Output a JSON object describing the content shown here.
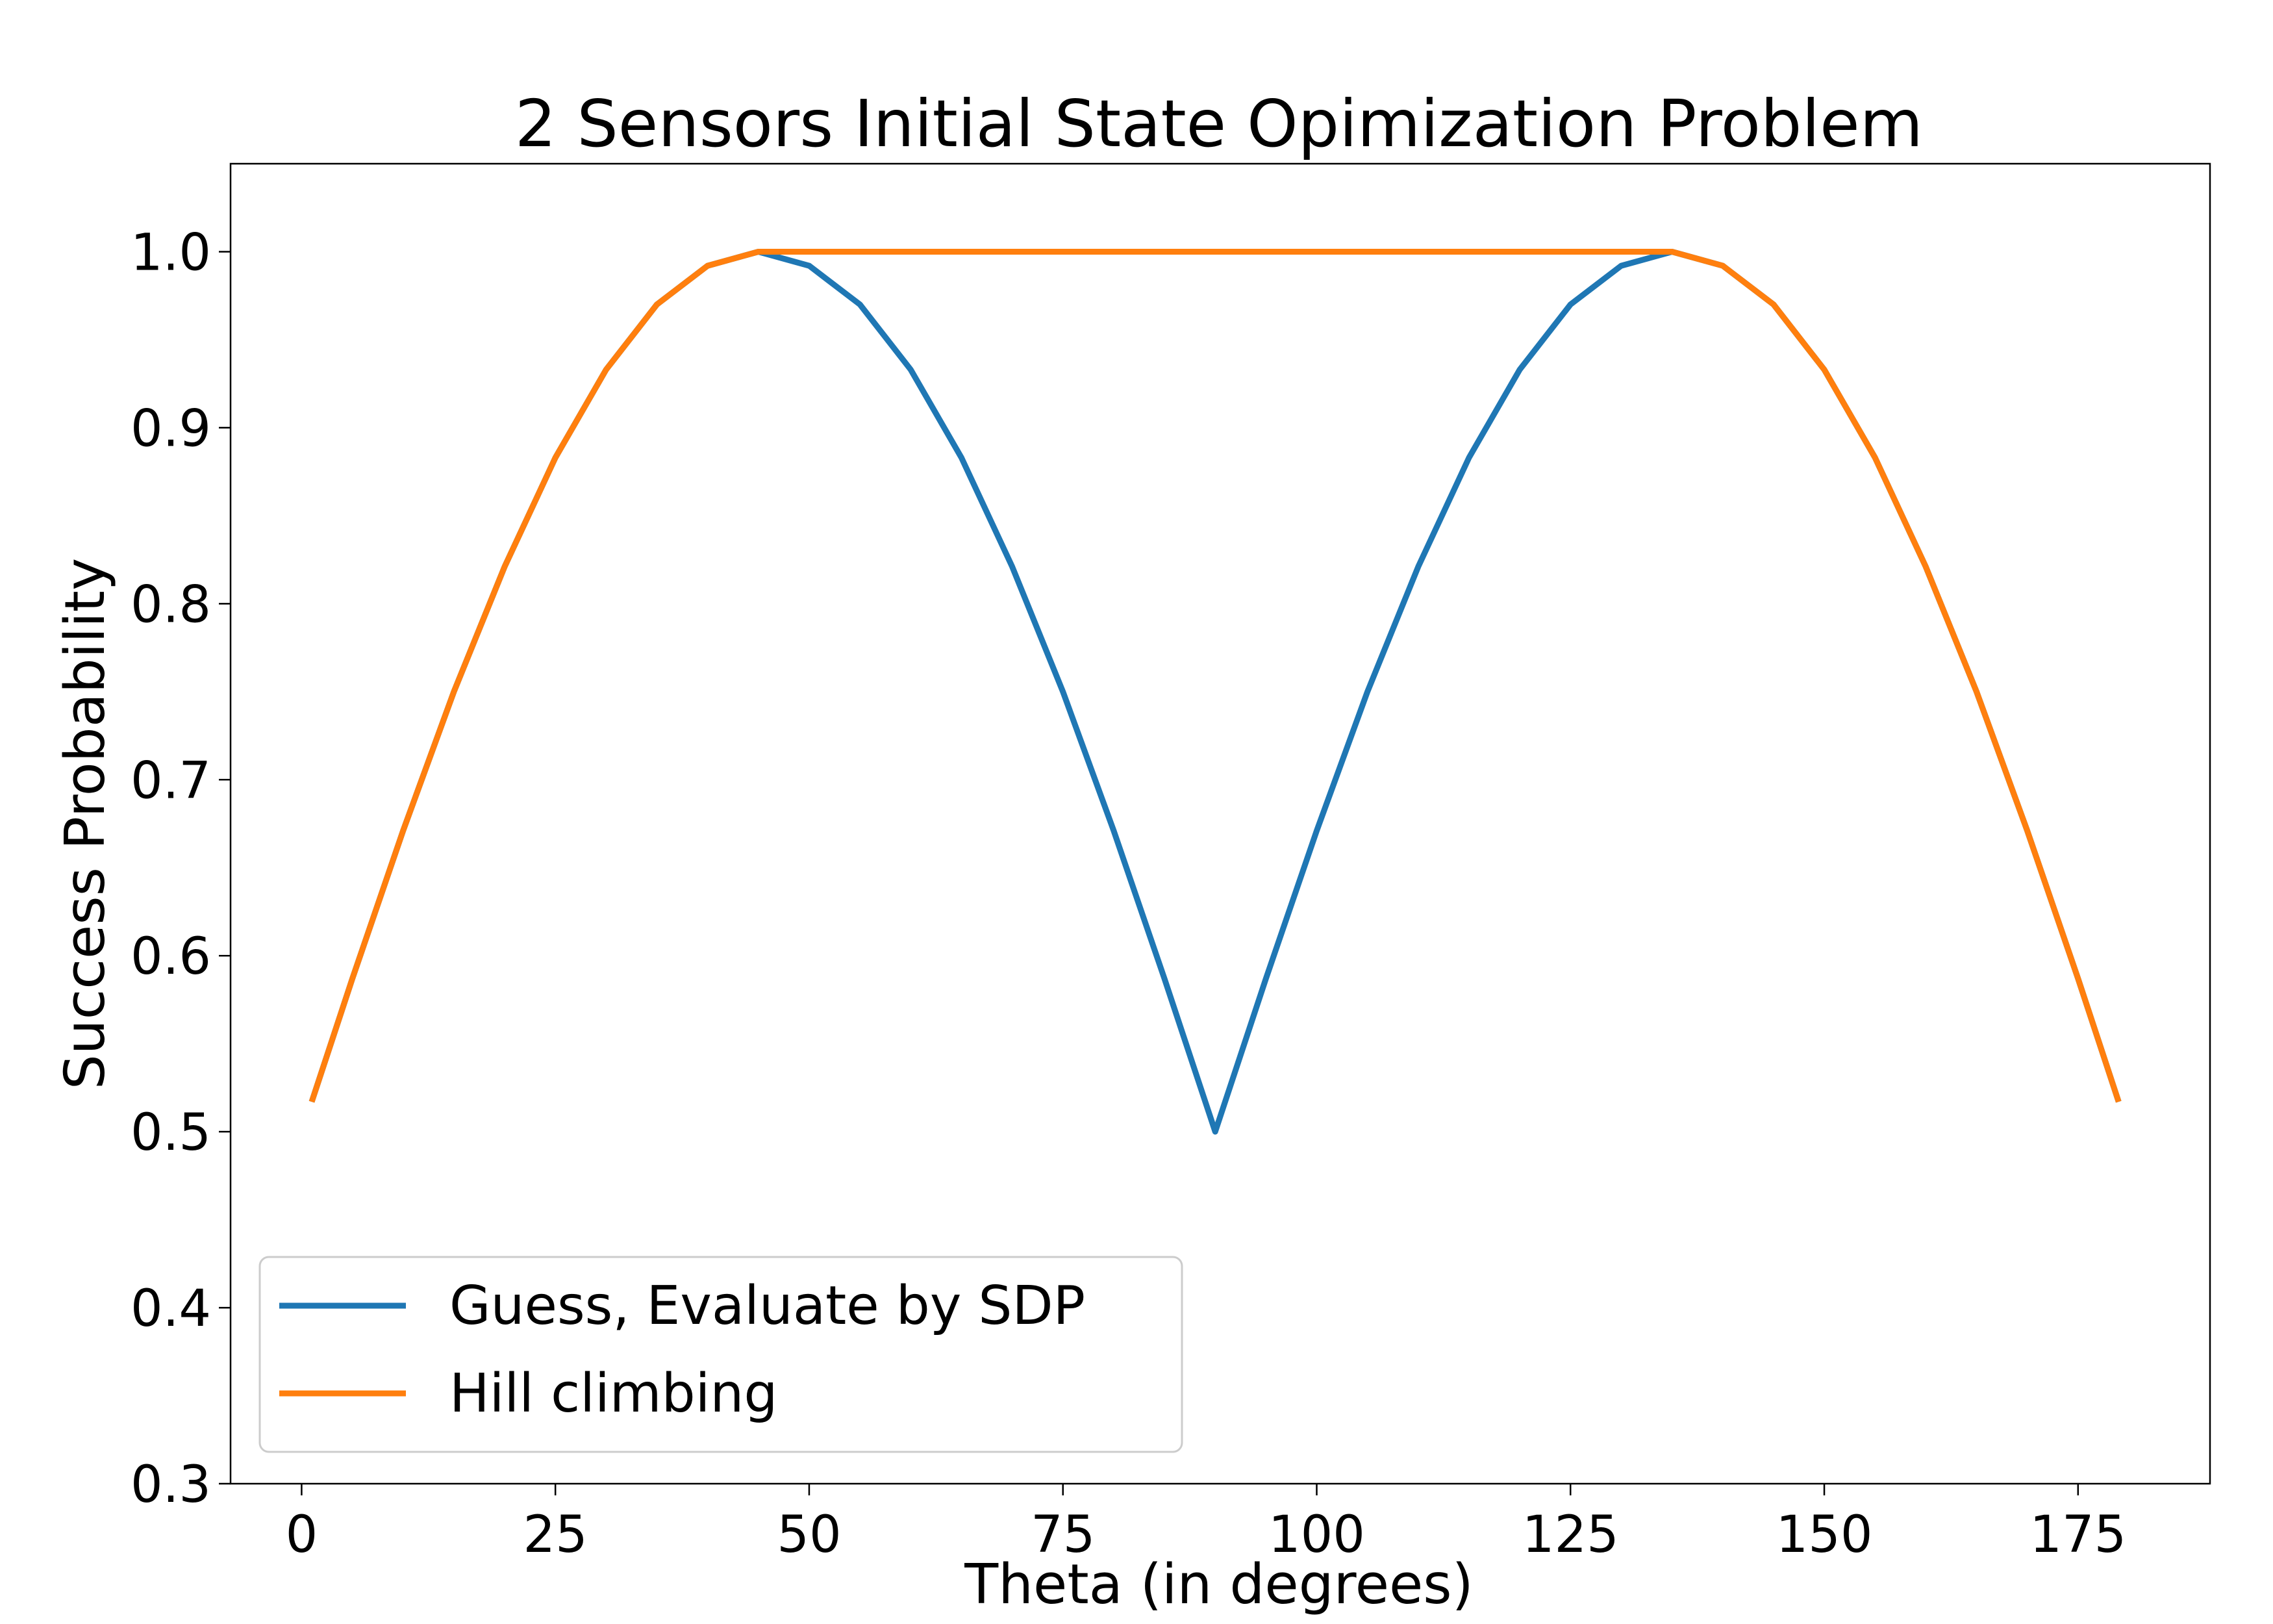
{
  "chart_data": {
    "type": "line",
    "title": "2 Sensors Initial State Opimization Problem",
    "xlabel": "Theta (in degrees)",
    "ylabel": "Success Probability",
    "xlim": [
      -7,
      188
    ],
    "ylim": [
      0.3,
      1.05
    ],
    "xticks": [
      0,
      25,
      50,
      75,
      100,
      125,
      150,
      175
    ],
    "yticks": [
      0.3,
      0.4,
      0.5,
      0.6,
      0.7,
      0.8,
      0.9,
      1.0
    ],
    "xtick_labels": [
      "0",
      "25",
      "50",
      "75",
      "100",
      "125",
      "150",
      "175"
    ],
    "ytick_labels": [
      "0.3",
      "0.4",
      "0.5",
      "0.6",
      "0.7",
      "0.8",
      "0.9",
      "1.0"
    ],
    "grid": false,
    "legend_position": "lower-left",
    "series": [
      {
        "name": "Guess, Evaluate by SDP",
        "color": "#1f77b4",
        "x": [
          1,
          5,
          10,
          15,
          20,
          25,
          30,
          35,
          40,
          45,
          50,
          55,
          60,
          65,
          70,
          75,
          80,
          85,
          90,
          95,
          100,
          105,
          110,
          115,
          120,
          125,
          130,
          135,
          140,
          145,
          150,
          155,
          160,
          165,
          170,
          175,
          179
        ],
        "y": [
          0.517,
          0.587,
          0.671,
          0.75,
          0.821,
          0.883,
          0.933,
          0.97,
          0.992,
          1.0,
          0.992,
          0.97,
          0.933,
          0.883,
          0.821,
          0.75,
          0.671,
          0.587,
          0.5,
          0.587,
          0.671,
          0.75,
          0.821,
          0.883,
          0.933,
          0.97,
          0.992,
          1.0,
          0.992,
          0.97,
          0.933,
          0.883,
          0.821,
          0.75,
          0.671,
          0.587,
          0.517
        ]
      },
      {
        "name": "Hill climbing",
        "color": "#ff7f0e",
        "x": [
          1,
          5,
          10,
          15,
          20,
          25,
          30,
          35,
          40,
          45,
          50,
          55,
          60,
          65,
          70,
          75,
          80,
          85,
          90,
          95,
          100,
          105,
          110,
          115,
          120,
          125,
          130,
          135,
          140,
          145,
          150,
          155,
          160,
          165,
          170,
          175,
          179
        ],
        "y": [
          0.517,
          0.587,
          0.671,
          0.75,
          0.821,
          0.883,
          0.933,
          0.97,
          0.992,
          1.0,
          1.0,
          1.0,
          1.0,
          1.0,
          1.0,
          1.0,
          1.0,
          1.0,
          1.0,
          1.0,
          1.0,
          1.0,
          1.0,
          1.0,
          1.0,
          1.0,
          1.0,
          1.0,
          0.992,
          0.97,
          0.933,
          0.883,
          0.821,
          0.75,
          0.671,
          0.587,
          0.517
        ]
      }
    ]
  }
}
